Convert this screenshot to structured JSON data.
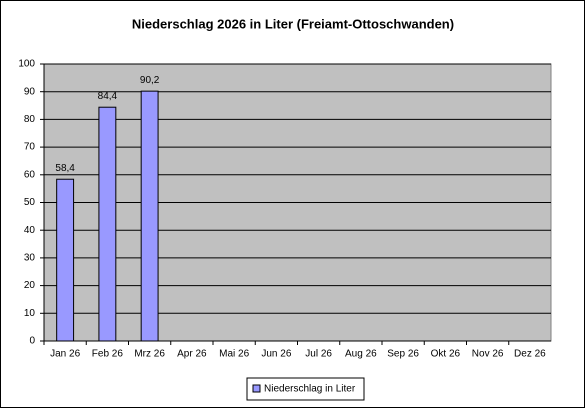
{
  "chart_data": {
    "type": "bar",
    "title": "Niederschlag 2026 in Liter (Freiamt-Ottoschwanden)",
    "categories": [
      "Jan 26",
      "Feb 26",
      "Mrz 26",
      "Apr 26",
      "Mai 26",
      "Jun 26",
      "Jul 26",
      "Aug 26",
      "Sep 26",
      "Okt 26",
      "Nov 26",
      "Dez 26"
    ],
    "series": [
      {
        "name": "Niederschlag in Liter",
        "color": "#9999ff",
        "values": [
          58.4,
          84.4,
          90.2,
          null,
          null,
          null,
          null,
          null,
          null,
          null,
          null,
          null
        ],
        "value_labels": [
          "58,4",
          "84,4",
          "90,2",
          null,
          null,
          null,
          null,
          null,
          null,
          null,
          null,
          null
        ]
      }
    ],
    "ylim": [
      0,
      100
    ],
    "yticks": [
      0,
      10,
      20,
      30,
      40,
      50,
      60,
      70,
      80,
      90,
      100
    ],
    "grid": true,
    "legend": "bottom"
  }
}
